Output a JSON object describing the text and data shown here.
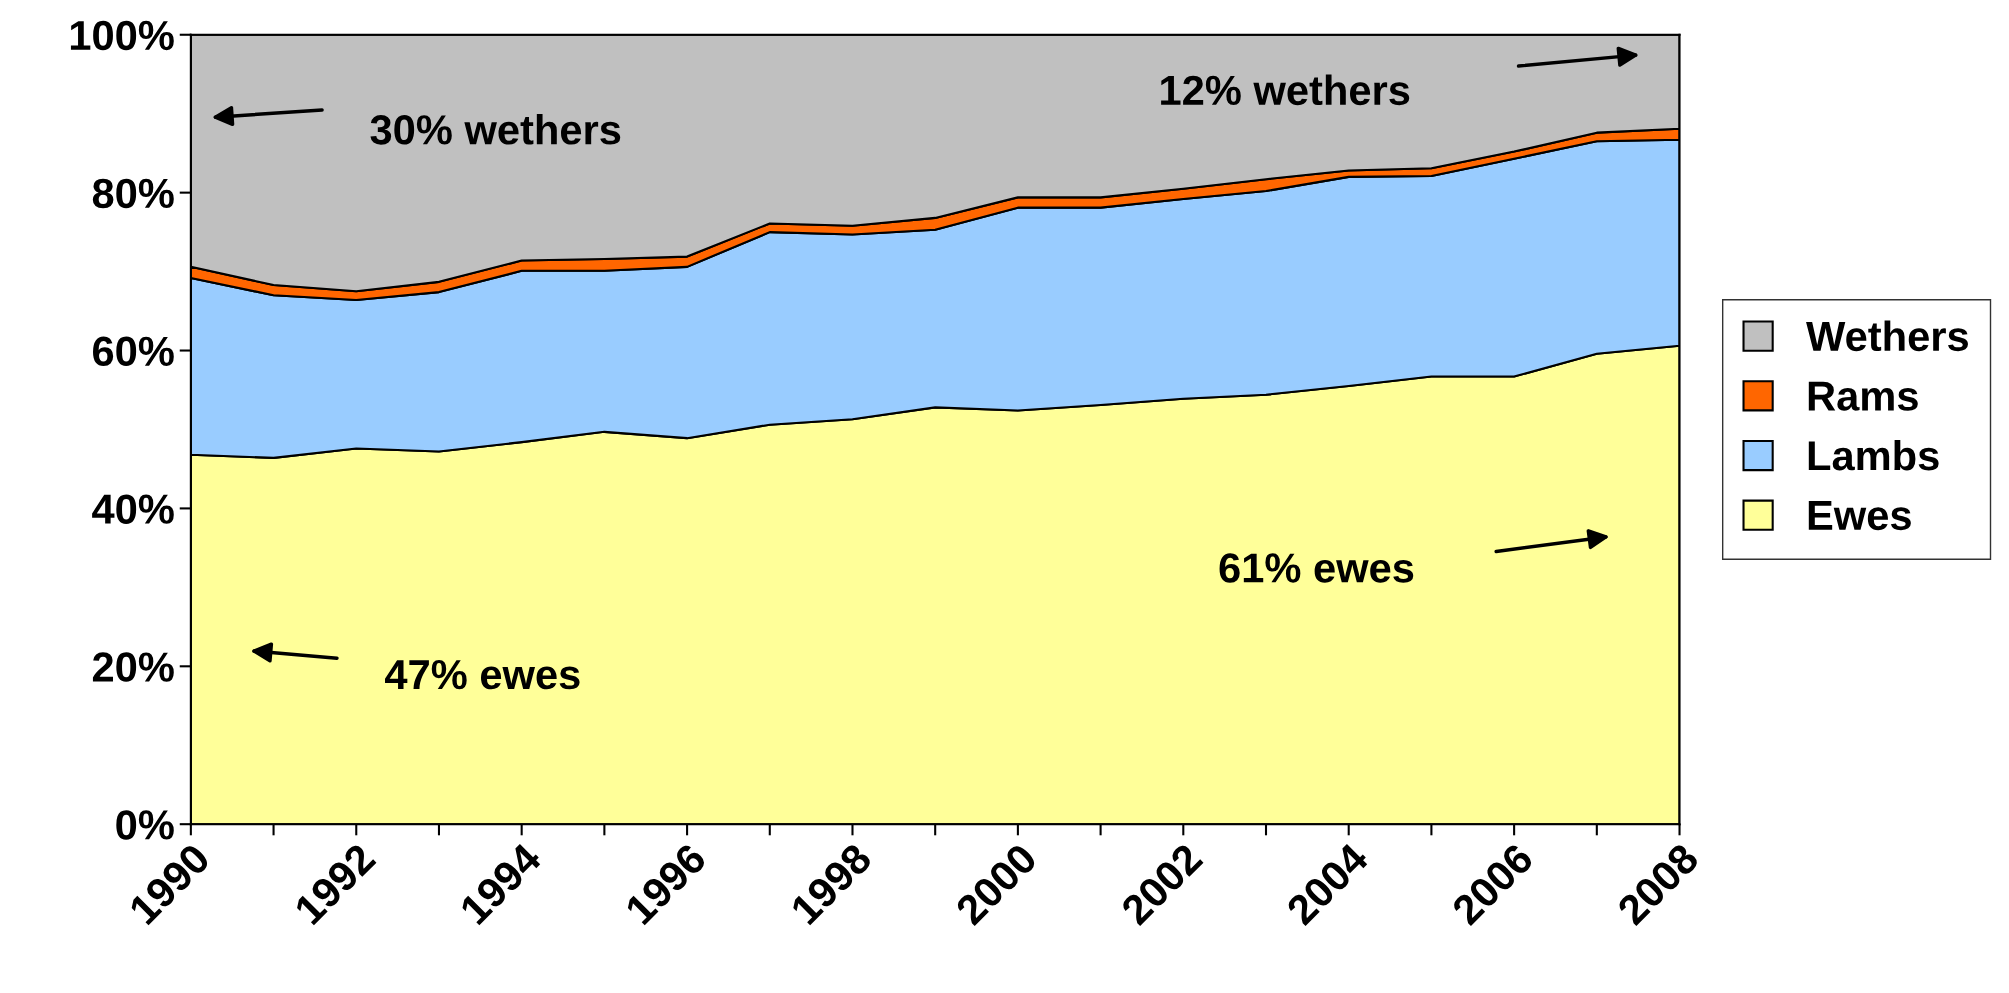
{
  "chart_data": {
    "type": "area",
    "stacked": true,
    "x": [
      1990,
      1991,
      1992,
      1993,
      1994,
      1995,
      1996,
      1997,
      1998,
      1999,
      2000,
      2001,
      2002,
      2003,
      2004,
      2005,
      2006,
      2007,
      2008
    ],
    "series": [
      {
        "name": "Ewes",
        "color": "#ffff99",
        "values": [
          46.8,
          46.4,
          47.6,
          47.2,
          48.4,
          49.7,
          48.9,
          50.6,
          51.3,
          52.8,
          52.4,
          53.1,
          53.9,
          54.4,
          55.5,
          56.7,
          56.7,
          59.6,
          60.6
        ]
      },
      {
        "name": "Lambs",
        "color": "#99ccff",
        "values": [
          22.4,
          20.6,
          18.8,
          20.2,
          21.7,
          20.4,
          21.7,
          24.4,
          23.4,
          22.5,
          25.7,
          25.0,
          25.3,
          25.8,
          26.5,
          25.4,
          27.6,
          26.9,
          26.1
        ]
      },
      {
        "name": "Rams",
        "color": "#ff6600",
        "values": [
          1.4,
          1.3,
          1.1,
          1.3,
          1.3,
          1.5,
          1.3,
          1.1,
          1.1,
          1.5,
          1.3,
          1.3,
          1.3,
          1.5,
          0.8,
          1.0,
          0.9,
          1.1,
          1.4
        ]
      },
      {
        "name": "Wethers",
        "color": "#c0c0c0",
        "values": [
          29.4,
          31.7,
          32.5,
          31.3,
          28.6,
          28.4,
          28.1,
          23.9,
          24.2,
          23.2,
          20.6,
          20.6,
          19.5,
          18.3,
          17.2,
          16.9,
          14.8,
          12.4,
          11.9
        ]
      }
    ],
    "xlim": [
      1990,
      2008
    ],
    "xticks": [
      1990,
      {
        "value": 1991,
        "label": null
      },
      1992,
      {
        "value": 1993,
        "label": null
      },
      1994,
      {
        "value": 1995,
        "label": null
      },
      1996,
      {
        "value": 1997,
        "label": null
      },
      1998,
      {
        "value": 1999,
        "label": null
      },
      2000,
      {
        "value": 2001,
        "label": null
      },
      2002,
      {
        "value": 2003,
        "label": null
      },
      2004,
      {
        "value": 2005,
        "label": null
      },
      2006,
      {
        "value": 2007,
        "label": null
      },
      2008
    ],
    "ylim": [
      0,
      100
    ],
    "yticks": [
      {
        "value": 0,
        "label": "0%"
      },
      {
        "value": 20,
        "label": "20%"
      },
      {
        "value": 40,
        "label": "40%"
      },
      {
        "value": 60,
        "label": "60%"
      },
      {
        "value": 80,
        "label": "80%"
      },
      {
        "value": 100,
        "label": "100%"
      }
    ],
    "annotations": [
      "30% wethers",
      "12% wethers",
      "61% ewes",
      "47% ewes"
    ],
    "legend": "right"
  }
}
